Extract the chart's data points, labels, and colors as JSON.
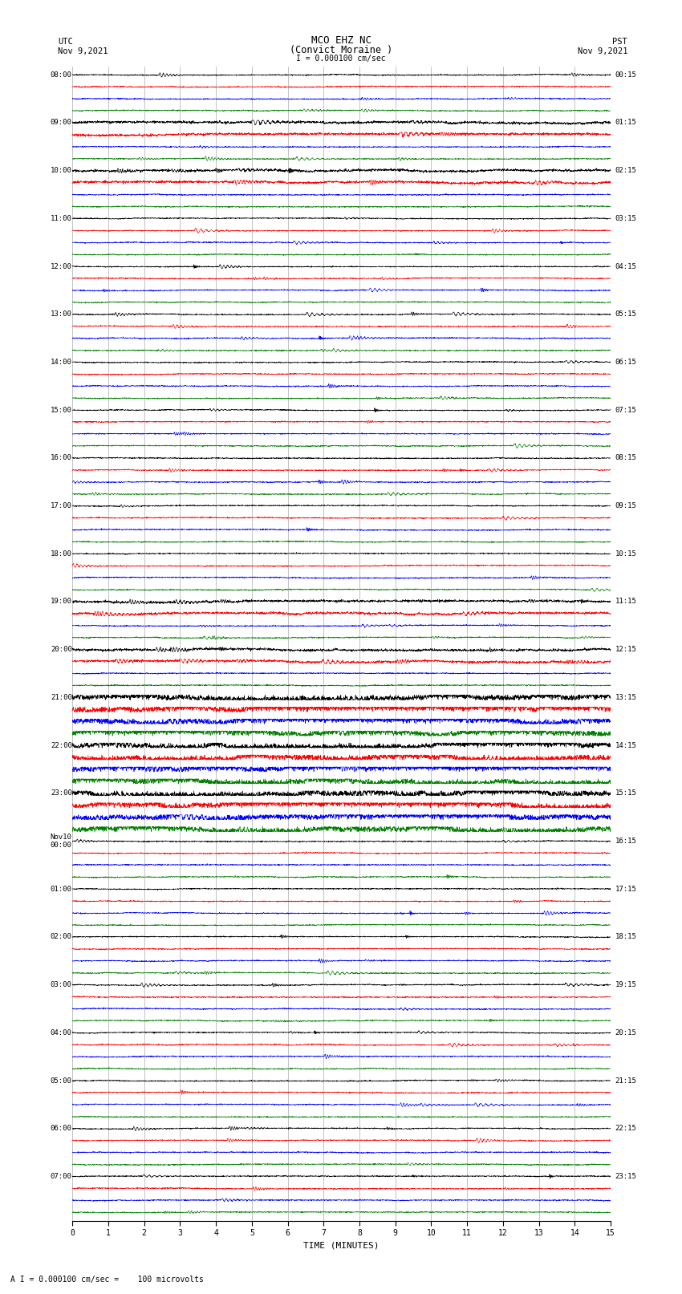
{
  "title_line1": "MCO EHZ NC",
  "title_line2": "(Convict Moraine )",
  "scale_label": "I = 0.000100 cm/sec",
  "left_label_top": "UTC",
  "left_label_date": "Nov 9,2021",
  "right_label_top": "PST",
  "right_label_date": "Nov 9,2021",
  "xlabel": "TIME (MINUTES)",
  "bottom_note": "A I = 0.000100 cm/sec =    100 microvolts",
  "utc_times": [
    "08:00",
    "",
    "",
    "",
    "09:00",
    "",
    "",
    "",
    "10:00",
    "",
    "",
    "",
    "11:00",
    "",
    "",
    "",
    "12:00",
    "",
    "",
    "",
    "13:00",
    "",
    "",
    "",
    "14:00",
    "",
    "",
    "",
    "15:00",
    "",
    "",
    "",
    "16:00",
    "",
    "",
    "",
    "17:00",
    "",
    "",
    "",
    "18:00",
    "",
    "",
    "",
    "19:00",
    "",
    "",
    "",
    "20:00",
    "",
    "",
    "",
    "21:00",
    "",
    "",
    "",
    "22:00",
    "",
    "",
    "",
    "23:00",
    "",
    "",
    "",
    "Nov10\n00:00",
    "",
    "",
    "",
    "01:00",
    "",
    "",
    "",
    "02:00",
    "",
    "",
    "",
    "03:00",
    "",
    "",
    "",
    "04:00",
    "",
    "",
    "",
    "05:00",
    "",
    "",
    "",
    "06:00",
    "",
    "",
    "",
    "07:00",
    "",
    "",
    ""
  ],
  "pst_times": [
    "00:15",
    "",
    "",
    "",
    "01:15",
    "",
    "",
    "",
    "02:15",
    "",
    "",
    "",
    "03:15",
    "",
    "",
    "",
    "04:15",
    "",
    "",
    "",
    "05:15",
    "",
    "",
    "",
    "06:15",
    "",
    "",
    "",
    "07:15",
    "",
    "",
    "",
    "08:15",
    "",
    "",
    "",
    "09:15",
    "",
    "",
    "",
    "10:15",
    "",
    "",
    "",
    "11:15",
    "",
    "",
    "",
    "12:15",
    "",
    "",
    "",
    "13:15",
    "",
    "",
    "",
    "14:15",
    "",
    "",
    "",
    "15:15",
    "",
    "",
    "",
    "16:15",
    "",
    "",
    "",
    "17:15",
    "",
    "",
    "",
    "18:15",
    "",
    "",
    "",
    "19:15",
    "",
    "",
    "",
    "20:15",
    "",
    "",
    "",
    "21:15",
    "",
    "",
    "",
    "22:15",
    "",
    "",
    "",
    "23:15",
    "",
    "",
    ""
  ],
  "colors": [
    "black",
    "red",
    "blue",
    "green"
  ],
  "n_rows": 96,
  "n_cols": 2700,
  "x_min": 0,
  "x_max": 15,
  "x_ticks": [
    0,
    1,
    2,
    3,
    4,
    5,
    6,
    7,
    8,
    9,
    10,
    11,
    12,
    13,
    14,
    15
  ],
  "bg_color": "white",
  "tick_fontsize": 7,
  "label_fontsize": 8,
  "title_fontsize": 9,
  "grid_color": "#888888",
  "high_activity_rows": [
    52,
    53,
    54,
    55,
    56,
    57,
    58,
    59,
    60,
    61,
    62,
    63
  ],
  "medium_activity_rows": [
    4,
    5,
    8,
    9,
    44,
    45,
    48,
    49
  ]
}
